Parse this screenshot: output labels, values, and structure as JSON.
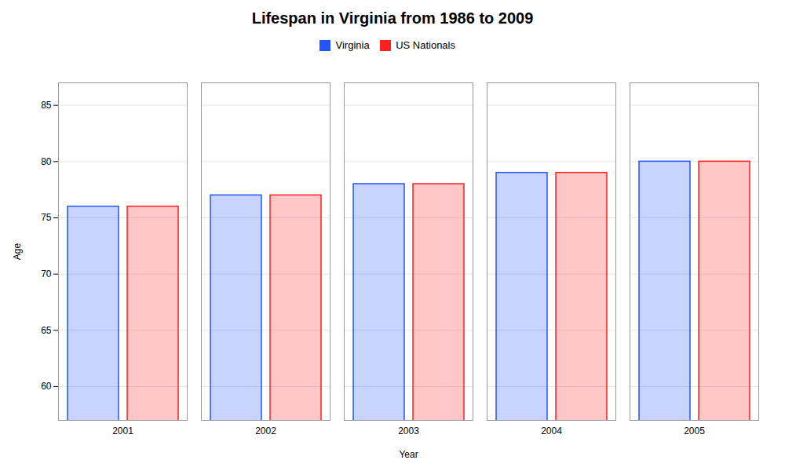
{
  "chart_data": {
    "type": "bar",
    "title": "Lifespan in Virginia from 1986 to 2009",
    "xlabel": "Year",
    "ylabel": "Age",
    "categories": [
      "2001",
      "2002",
      "2003",
      "2004",
      "2005"
    ],
    "series": [
      {
        "name": "Virginia",
        "color": "#2255ff",
        "values": [
          76.0,
          77.0,
          78.0,
          79.0,
          80.0
        ]
      },
      {
        "name": "US Nationals",
        "color": "#ff2020",
        "values": [
          76.0,
          77.0,
          78.0,
          79.0,
          80.0
        ]
      }
    ],
    "ylim": [
      57,
      87
    ],
    "yticks": [
      60,
      65,
      70,
      75,
      80,
      85
    ],
    "grid": true,
    "legend": "top"
  }
}
